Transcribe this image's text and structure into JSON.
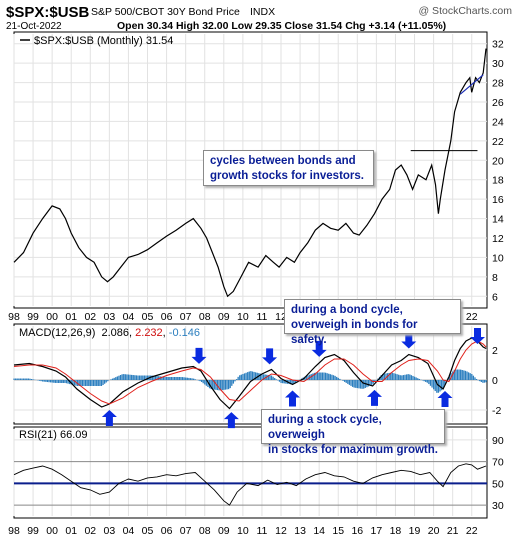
{
  "header": {
    "symbol": "$SPX:$USB",
    "description": "S&P 500/CBOT 30Y Bond Price",
    "exchange": "INDX",
    "copyright": "@ StockCharts.com",
    "date": "21-Oct-2022",
    "quote": "Open 30.34  High 32.00  Low 29.35  Close 31.54  Chg +3.14 (+11.05%)"
  },
  "price_legend": "$SPX:$USB (Monthly) 31.54",
  "macd_legend": {
    "label": "MACD(12,26,9)",
    "macd": "2.086",
    "signal": "2.232",
    "hist": "-0.146"
  },
  "rsi_legend": "RSI(21) 66.09",
  "x_ticks": [
    "98",
    "99",
    "00",
    "01",
    "02",
    "03",
    "04",
    "05",
    "06",
    "07",
    "08",
    "09",
    "10",
    "11",
    "12",
    "13",
    "14",
    "15",
    "16",
    "17",
    "18",
    "19",
    "20",
    "21",
    "22"
  ],
  "annotations": [
    {
      "id": "cycles",
      "text": "cycles between bonds and\ngrowth stocks for investors."
    },
    {
      "id": "bond",
      "text": "during a bond cycle,\noverweigh in bonds for safety."
    },
    {
      "id": "stock",
      "text": "during a stock cycle, overweigh\nin stocks for maximum growth."
    }
  ],
  "colors": {
    "price": "#000000",
    "trend": "#1a2db4",
    "macd": "#000000",
    "signal": "#e0201a",
    "hist": "#2c7fbf",
    "arrow": "#0a2be0",
    "rsi_line": "#0a1e8c"
  },
  "chart_data": [
    {
      "type": "line",
      "name": "price",
      "title": "$SPX:$USB (Monthly) 31.54",
      "xlim": [
        1998,
        2022.8
      ],
      "ylim": [
        5,
        33
      ],
      "y_ticks": [
        6,
        8,
        10,
        12,
        14,
        16,
        18,
        20,
        22,
        24,
        26,
        28,
        30,
        32
      ],
      "x": [
        1998.0,
        1998.5,
        1999.0,
        1999.5,
        2000.0,
        2000.4,
        2000.7,
        2001.0,
        2001.4,
        2001.8,
        2002.2,
        2002.6,
        2002.9,
        2003.2,
        2003.6,
        2004.0,
        2004.5,
        2005.0,
        2005.5,
        2006.0,
        2006.5,
        2007.0,
        2007.4,
        2007.8,
        2008.1,
        2008.4,
        2008.7,
        2009.0,
        2009.2,
        2009.5,
        2009.9,
        2010.3,
        2010.8,
        2011.2,
        2011.6,
        2011.9,
        2012.3,
        2012.7,
        2013.0,
        2013.4,
        2013.8,
        2014.2,
        2014.6,
        2015.0,
        2015.4,
        2015.8,
        2016.1,
        2016.5,
        2016.9,
        2017.3,
        2017.7,
        2018.0,
        2018.3,
        2018.6,
        2018.9,
        2019.2,
        2019.6,
        2019.9,
        2020.1,
        2020.25,
        2020.35,
        2020.6,
        2020.9,
        2021.1,
        2021.4,
        2021.7,
        2021.9,
        2022.0,
        2022.2,
        2022.4,
        2022.6,
        2022.75
      ],
      "y": [
        9.5,
        10.5,
        12.5,
        14,
        15.3,
        15,
        14,
        12.5,
        11,
        10,
        9.5,
        8,
        7.5,
        8,
        9,
        10,
        10.3,
        10.8,
        11.5,
        12.2,
        12.8,
        13.5,
        14,
        13,
        12,
        10.5,
        9,
        7,
        6,
        6.5,
        8,
        9.5,
        9,
        10.2,
        9.5,
        9,
        10,
        9.5,
        10.5,
        11.5,
        12.8,
        13.5,
        13,
        12.8,
        13.5,
        12.5,
        12.3,
        13.3,
        14.5,
        16,
        17,
        19,
        19.5,
        18.5,
        17,
        18.5,
        18,
        19.5,
        17.5,
        14.5,
        16,
        19,
        22,
        25,
        27,
        28,
        28.5,
        27,
        28.5,
        28,
        29,
        31.5
      ]
    },
    {
      "type": "line",
      "name": "price-trend",
      "x": [
        2018.8,
        2022.3
      ],
      "y": [
        21,
        21
      ],
      "x2": [
        2021.4,
        2022.6
      ],
      "y2": [
        26.8,
        28.8
      ]
    },
    {
      "type": "bar",
      "name": "macd",
      "title": "MACD(12,26,9) 2.086, 2.232, -0.146",
      "ylim": [
        -2.8,
        3.6
      ],
      "y_ticks": [
        -2,
        0,
        2
      ],
      "x": [
        1998.0,
        1998.8,
        1999.5,
        2000.2,
        2000.7,
        2001.3,
        2002.0,
        2002.6,
        2003.0,
        2003.7,
        2004.5,
        2005.2,
        2006.0,
        2006.8,
        2007.4,
        2007.8,
        2008.3,
        2008.8,
        2009.3,
        2009.8,
        2010.4,
        2011.0,
        2011.5,
        2012.0,
        2012.6,
        2013.2,
        2013.8,
        2014.3,
        2014.8,
        2015.3,
        2015.8,
        2016.3,
        2016.8,
        2017.3,
        2017.8,
        2018.3,
        2018.7,
        2019.2,
        2019.7,
        2020.2,
        2020.5,
        2020.8,
        2021.1,
        2021.4,
        2021.7,
        2022.0,
        2022.3,
        2022.6,
        2022.75
      ],
      "macd": [
        1.0,
        1.1,
        0.9,
        0.6,
        0.2,
        -0.6,
        -1.3,
        -1.8,
        -1.6,
        -0.8,
        -0.2,
        0.2,
        0.5,
        0.8,
        0.9,
        0.6,
        -0.4,
        -1.3,
        -1.9,
        -1.1,
        -0.1,
        0.4,
        0.7,
        0.1,
        -0.3,
        0.1,
        0.9,
        1.5,
        1.7,
        1.3,
        0.5,
        -0.2,
        -0.4,
        0.3,
        1.0,
        1.3,
        1.7,
        1.5,
        1.1,
        -0.3,
        -0.6,
        0.2,
        1.3,
        2.1,
        2.6,
        2.8,
        2.6,
        2.2,
        2.1
      ],
      "signal": [
        0.9,
        1.0,
        1.0,
        0.8,
        0.4,
        -0.2,
        -0.9,
        -1.4,
        -1.6,
        -1.2,
        -0.5,
        -0.1,
        0.3,
        0.6,
        0.8,
        0.7,
        0.2,
        -0.6,
        -1.3,
        -1.4,
        -0.7,
        0.0,
        0.4,
        0.3,
        0.0,
        -0.1,
        0.4,
        1.0,
        1.4,
        1.4,
        1.0,
        0.4,
        -0.1,
        -0.1,
        0.5,
        1.0,
        1.3,
        1.4,
        1.3,
        0.6,
        0.0,
        -0.1,
        0.6,
        1.4,
        2.0,
        2.4,
        2.6,
        2.4,
        2.2
      ],
      "hist": [
        0.1,
        0.1,
        -0.1,
        -0.2,
        -0.2,
        -0.4,
        -0.4,
        -0.4,
        0.0,
        0.4,
        0.3,
        0.3,
        0.2,
        0.2,
        0.1,
        -0.1,
        -0.6,
        -0.7,
        -0.6,
        0.3,
        0.6,
        0.4,
        0.3,
        -0.2,
        -0.3,
        0.2,
        0.5,
        0.5,
        0.3,
        -0.1,
        -0.5,
        -0.6,
        -0.3,
        0.4,
        0.5,
        0.3,
        0.4,
        0.1,
        -0.2,
        -0.9,
        -0.6,
        0.3,
        0.7,
        0.7,
        0.6,
        0.4,
        0.0,
        -0.2,
        -0.15
      ],
      "arrows_down": [
        2007.7,
        2011.4,
        2014.0,
        2018.7,
        2022.3
      ],
      "arrows_up": [
        2003.0,
        2009.4,
        2012.6,
        2016.9,
        2020.6
      ]
    },
    {
      "type": "line",
      "name": "rsi",
      "title": "RSI(21) 66.09",
      "ylim": [
        20,
        100
      ],
      "y_ticks": [
        30,
        50,
        70,
        90
      ],
      "reference": [
        30,
        50,
        70
      ],
      "x": [
        1998.0,
        1998.5,
        1999.0,
        1999.5,
        2000.0,
        2000.5,
        2001.0,
        2001.5,
        2002.0,
        2002.5,
        2003.0,
        2003.5,
        2004.0,
        2004.5,
        2005.0,
        2005.5,
        2006.0,
        2006.5,
        2007.0,
        2007.5,
        2008.0,
        2008.5,
        2009.0,
        2009.3,
        2009.7,
        2010.2,
        2010.8,
        2011.3,
        2011.8,
        2012.3,
        2012.8,
        2013.3,
        2013.8,
        2014.3,
        2014.8,
        2015.3,
        2015.8,
        2016.3,
        2016.8,
        2017.3,
        2017.8,
        2018.3,
        2018.8,
        2019.3,
        2019.8,
        2020.2,
        2020.5,
        2020.9,
        2021.3,
        2021.7,
        2022.0,
        2022.3,
        2022.6,
        2022.75
      ],
      "y": [
        58,
        62,
        64,
        66,
        63,
        58,
        52,
        46,
        44,
        40,
        42,
        50,
        54,
        52,
        55,
        56,
        58,
        57,
        59,
        60,
        52,
        44,
        34,
        30,
        42,
        50,
        48,
        53,
        49,
        51,
        48,
        54,
        58,
        60,
        57,
        56,
        52,
        50,
        55,
        58,
        60,
        62,
        61,
        58,
        60,
        52,
        47,
        60,
        66,
        68,
        67,
        63,
        65,
        66
      ]
    }
  ]
}
